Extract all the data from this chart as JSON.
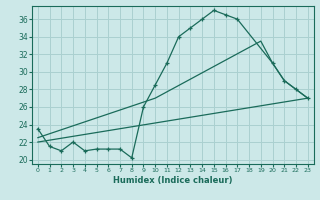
{
  "title": "",
  "xlabel": "Humidex (Indice chaleur)",
  "bg_color": "#cce8e8",
  "grid_color": "#aad0d0",
  "line_color": "#1a6b5a",
  "xlim": [
    -0.5,
    23.5
  ],
  "ylim": [
    19.5,
    37.5
  ],
  "xticks": [
    0,
    1,
    2,
    3,
    4,
    5,
    6,
    7,
    8,
    9,
    10,
    11,
    12,
    13,
    14,
    15,
    16,
    17,
    18,
    19,
    20,
    21,
    22,
    23
  ],
  "yticks": [
    20,
    22,
    24,
    26,
    28,
    30,
    32,
    34,
    36
  ],
  "line1_x": [
    0,
    1,
    2,
    3,
    4,
    5,
    6,
    7,
    8,
    9,
    10,
    11,
    12,
    13,
    14,
    15,
    16,
    17,
    20,
    21,
    22,
    23
  ],
  "line1_y": [
    23.5,
    21.5,
    21.0,
    22.0,
    21.0,
    21.2,
    21.2,
    21.2,
    20.2,
    26.0,
    28.5,
    31.0,
    34.0,
    35.0,
    36.0,
    37.0,
    36.5,
    36.0,
    31.0,
    29.0,
    28.0,
    27.0
  ],
  "line2_x": [
    0,
    10,
    19,
    20,
    21,
    22,
    23
  ],
  "line2_y": [
    22.5,
    27.0,
    33.5,
    31.0,
    29.0,
    28.0,
    27.0
  ],
  "line3_x": [
    0,
    23
  ],
  "line3_y": [
    22.0,
    27.0
  ]
}
